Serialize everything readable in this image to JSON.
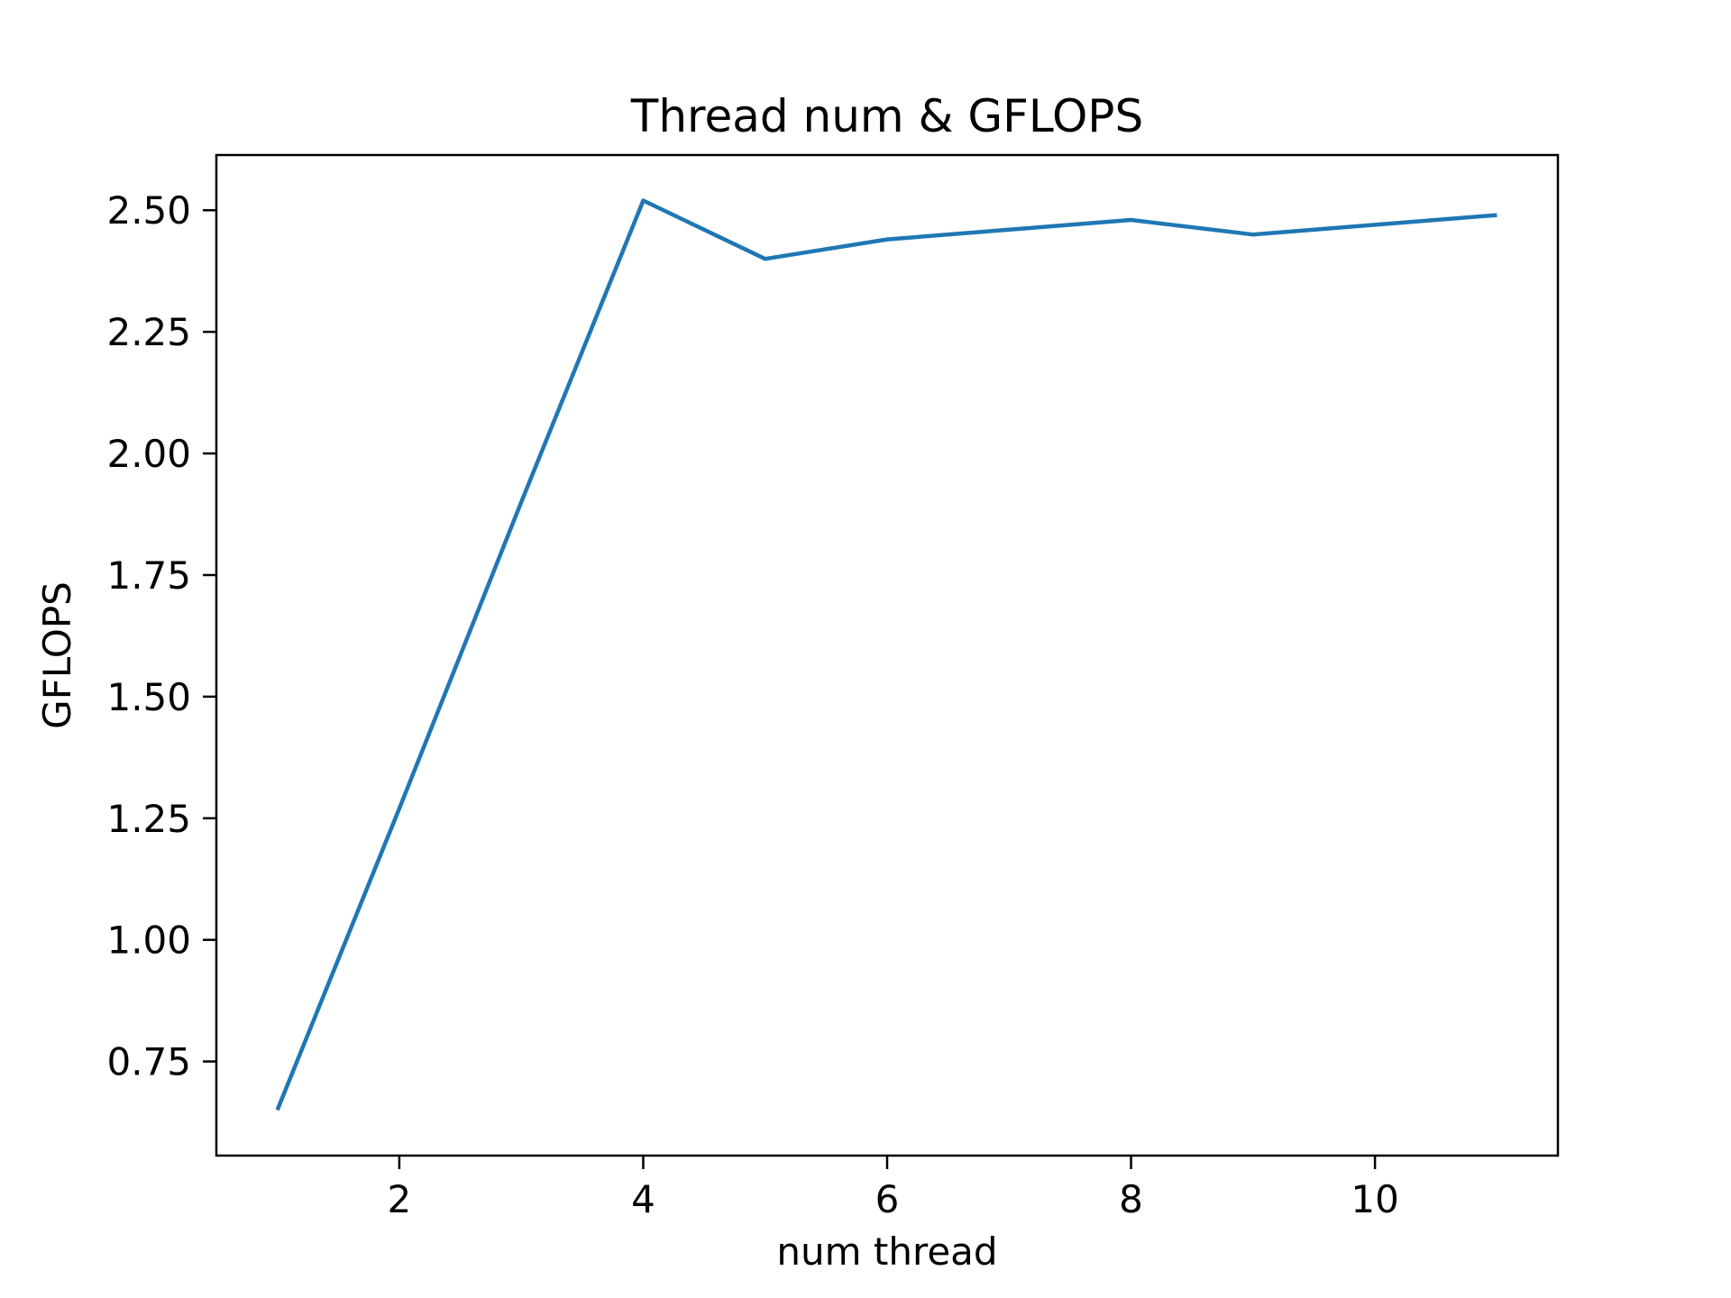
{
  "figure": {
    "background_color": "#ffffff",
    "axis_color": "#000000",
    "text_color": "#000000"
  },
  "chart_data": {
    "type": "line",
    "title": "Thread num & GFLOPS",
    "xlabel": "num thread",
    "ylabel": "GFLOPS",
    "x": [
      1,
      2,
      3,
      4,
      5,
      6,
      7,
      8,
      9,
      10,
      11
    ],
    "series": [
      {
        "name": "GFLOPS",
        "color": "#1f77b4",
        "values": [
          0.65,
          1.27,
          1.9,
          2.52,
          2.4,
          2.44,
          2.46,
          2.48,
          2.45,
          2.47,
          2.49
        ]
      }
    ],
    "xlim": [
      0.5,
      11.5
    ],
    "ylim": [
      0.5565,
      2.6135
    ],
    "xticks": {
      "values": [
        2,
        4,
        6,
        8,
        10
      ],
      "labels": [
        "2",
        "4",
        "6",
        "8",
        "10"
      ]
    },
    "yticks": {
      "values": [
        0.75,
        1.0,
        1.25,
        1.5,
        1.75,
        2.0,
        2.25,
        2.5
      ],
      "labels": [
        "0.75",
        "1.00",
        "1.25",
        "1.50",
        "1.75",
        "2.00",
        "2.25",
        "2.50"
      ]
    },
    "grid": false,
    "legend": "none",
    "line_width": 4.5
  }
}
